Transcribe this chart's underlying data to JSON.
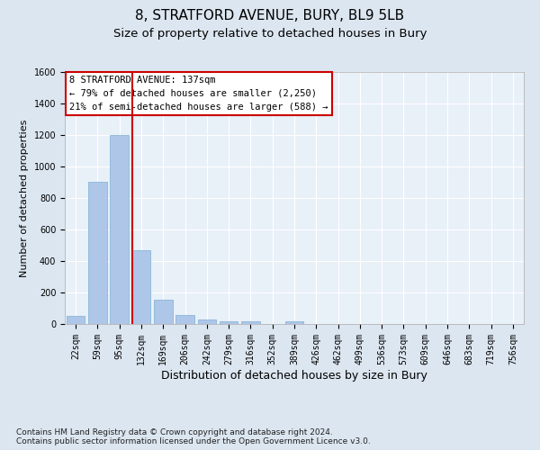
{
  "title1": "8, STRATFORD AVENUE, BURY, BL9 5LB",
  "title2": "Size of property relative to detached houses in Bury",
  "xlabel": "Distribution of detached houses by size in Bury",
  "ylabel": "Number of detached properties",
  "categories": [
    "22sqm",
    "59sqm",
    "95sqm",
    "132sqm",
    "169sqm",
    "206sqm",
    "242sqm",
    "279sqm",
    "316sqm",
    "352sqm",
    "389sqm",
    "426sqm",
    "462sqm",
    "499sqm",
    "536sqm",
    "573sqm",
    "609sqm",
    "646sqm",
    "683sqm",
    "719sqm",
    "756sqm"
  ],
  "values": [
    50,
    900,
    1200,
    470,
    155,
    60,
    30,
    20,
    20,
    0,
    20,
    0,
    0,
    0,
    0,
    0,
    0,
    0,
    0,
    0,
    0
  ],
  "bar_color": "#aec6e8",
  "bar_edge_color": "#7bafd4",
  "vline_color": "#cc0000",
  "vline_index": 2.575,
  "annotation_text": "8 STRATFORD AVENUE: 137sqm\n← 79% of detached houses are smaller (2,250)\n21% of semi-detached houses are larger (588) →",
  "annotation_box_color": "#ffffff",
  "annotation_box_edge": "#cc0000",
  "ylim": [
    0,
    1600
  ],
  "yticks": [
    0,
    200,
    400,
    600,
    800,
    1000,
    1200,
    1400,
    1600
  ],
  "bg_color": "#dce6f0",
  "plot_bg_color": "#e8f0f8",
  "grid_color": "#ffffff",
  "footer": "Contains HM Land Registry data © Crown copyright and database right 2024.\nContains public sector information licensed under the Open Government Licence v3.0.",
  "title1_fontsize": 11,
  "title2_fontsize": 9.5,
  "xlabel_fontsize": 9,
  "ylabel_fontsize": 8,
  "tick_fontsize": 7,
  "annotation_fontsize": 7.5,
  "footer_fontsize": 6.5
}
